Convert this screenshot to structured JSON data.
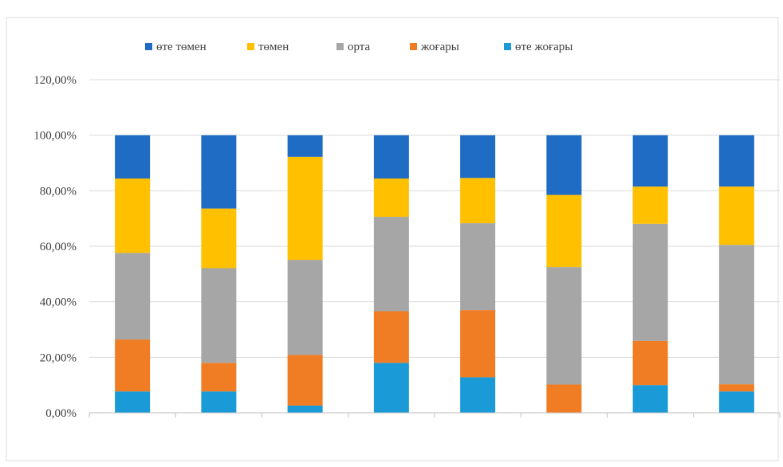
{
  "chart_data": {
    "type": "bar",
    "stacked": true,
    "categories": [
      "",
      "",
      "",
      "",
      "",
      "",
      "",
      ""
    ],
    "series": [
      {
        "name": "өте жоғары",
        "color": "#1a9bd7",
        "values": [
          7.7,
          7.7,
          2.6,
          18.0,
          12.8,
          0.0,
          10.0,
          7.7
        ]
      },
      {
        "name": "жоғары",
        "color": "#f07d24",
        "values": [
          18.7,
          10.3,
          18.3,
          18.6,
          24.2,
          10.2,
          15.9,
          2.6
        ]
      },
      {
        "name": "орта",
        "color": "#a6a6a6",
        "values": [
          31.2,
          34.1,
          34.2,
          34.0,
          31.3,
          42.3,
          42.2,
          50.2
        ]
      },
      {
        "name": "төмен",
        "color": "#ffc000",
        "values": [
          26.8,
          21.5,
          37.1,
          13.8,
          16.3,
          26.0,
          13.4,
          21.0
        ]
      },
      {
        "name": "өте төмен",
        "color": "#1f6cc4",
        "values": [
          15.6,
          26.4,
          7.8,
          15.6,
          15.4,
          21.5,
          18.5,
          18.5
        ]
      }
    ],
    "legend_order": [
      "өте төмен",
      "төмен",
      "орта",
      "жоғары",
      "өте жоғары"
    ],
    "title": "",
    "xlabel": "",
    "ylabel": "",
    "ylim": [
      0,
      120
    ],
    "yticks": [
      "0,00%",
      "20,00%",
      "40,00%",
      "60,00%",
      "80,00%",
      "100,00%",
      "120,00%"
    ],
    "grid": true,
    "legend_position": "top"
  }
}
